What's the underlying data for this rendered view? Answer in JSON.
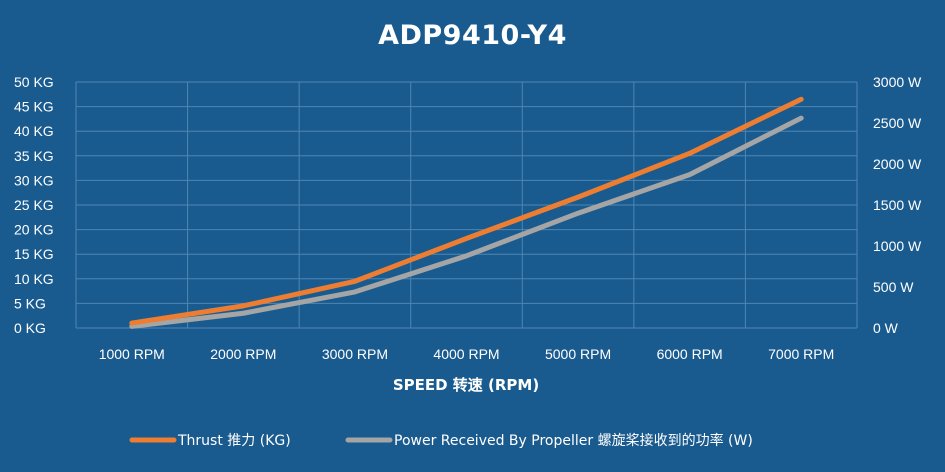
{
  "chart_data": {
    "type": "line",
    "title": "ADP9410-Y4",
    "xlabel": "SPEED 转速 (RPM)",
    "ylabel": "",
    "y2label": "",
    "categories": [
      "1000 RPM",
      "2000 RPM",
      "3000 RPM",
      "4000 RPM",
      "5000 RPM",
      "6000 RPM",
      "7000 RPM"
    ],
    "y_ticks": [
      "0 KG",
      "5 KG",
      "10 KG",
      "15 KG",
      "20 KG",
      "25 KG",
      "30 KG",
      "35 KG",
      "40 KG",
      "45 KG",
      "50 KG"
    ],
    "y2_ticks": [
      "0 W",
      "500 W",
      "1000 W",
      "1500 W",
      "2000 W",
      "2500 W",
      "3000 W"
    ],
    "ylim": [
      0,
      50
    ],
    "y2lim": [
      0,
      3000
    ],
    "grid": true,
    "legend_position": "bottom",
    "series": [
      {
        "name": "Thrust 推力 (KG)",
        "axis": "left",
        "color": "#ed7d31",
        "values": [
          1.0,
          4.5,
          9.5,
          18.2,
          26.6,
          35.5,
          46.5
        ]
      },
      {
        "name": "Power Received By Propeller 螺旋桨接收到的功率 (W)",
        "axis": "right",
        "color": "#a5a5a5",
        "values": [
          20,
          180,
          440,
          880,
          1400,
          1870,
          2560
        ]
      }
    ]
  }
}
